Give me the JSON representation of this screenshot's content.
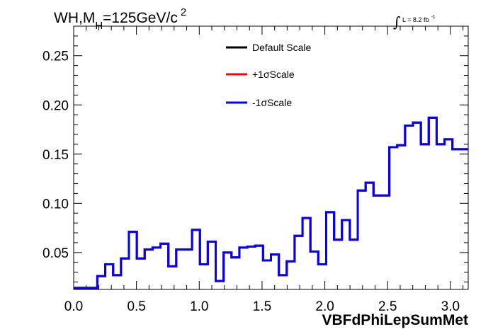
{
  "chart_data": {
    "type": "line",
    "title": {
      "main": "WH,M",
      "subscript": "H",
      "rest": "=125GeV/c",
      "superscript": "2"
    },
    "luminosity": {
      "integral_symbol": "∫",
      "text": "L = 8.2 fb",
      "superscript": "-1"
    },
    "xlabel": "VBFdPhiLepSumMet",
    "ylabel": "",
    "xlim": [
      0.0,
      3.1416
    ],
    "ylim": [
      0.0125,
      0.28
    ],
    "x_ticks": [
      0.0,
      0.5,
      1.0,
      1.5,
      2.0,
      2.5,
      3.0
    ],
    "x_tick_labels": [
      "0.0",
      "0.5",
      "1.0",
      "1.5",
      "2.0",
      "2.5",
      "3.0"
    ],
    "y_ticks": [
      0.05,
      0.1,
      0.15,
      0.2,
      0.25
    ],
    "y_tick_labels": [
      "0.05",
      "0.10",
      "0.15",
      "0.20",
      "0.25"
    ],
    "grid": false,
    "legend_position": "top-center",
    "bin_edges": [
      0.0,
      0.0628,
      0.1257,
      0.1885,
      0.2513,
      0.3142,
      0.377,
      0.4398,
      0.5027,
      0.5655,
      0.6283,
      0.6912,
      0.754,
      0.8168,
      0.8796,
      0.9425,
      1.0053,
      1.0681,
      1.131,
      1.1938,
      1.2566,
      1.3195,
      1.3823,
      1.4451,
      1.508,
      1.5708,
      1.6336,
      1.6965,
      1.7593,
      1.8221,
      1.885,
      1.9478,
      2.0106,
      2.0735,
      2.1363,
      2.1991,
      2.2619,
      2.3248,
      2.3876,
      2.4504,
      2.5133,
      2.5761,
      2.6389,
      2.7018,
      2.7646,
      2.8274,
      2.8903,
      2.9531,
      3.0159,
      3.0788,
      3.1416
    ],
    "series": [
      {
        "name": "Default Scale",
        "color": "#000000",
        "values": [
          0.014,
          0.014,
          0.014,
          0.026,
          0.038,
          0.027,
          0.044,
          0.071,
          0.044,
          0.053,
          0.055,
          0.059,
          0.036,
          0.053,
          0.053,
          0.073,
          0.038,
          0.061,
          0.021,
          0.05,
          0.045,
          0.055,
          0.056,
          0.057,
          0.042,
          0.048,
          0.027,
          0.041,
          0.067,
          0.085,
          0.051,
          0.038,
          0.091,
          0.063,
          0.083,
          0.063,
          0.113,
          0.121,
          0.108,
          0.108,
          0.157,
          0.159,
          0.179,
          0.182,
          0.16,
          0.187,
          0.16,
          0.165,
          0.155,
          0.155
        ]
      },
      {
        "name": "+1σScale",
        "color": "#ff0000",
        "values": [
          0.014,
          0.014,
          0.014,
          0.026,
          0.038,
          0.027,
          0.044,
          0.071,
          0.044,
          0.053,
          0.055,
          0.059,
          0.036,
          0.053,
          0.053,
          0.073,
          0.038,
          0.061,
          0.021,
          0.05,
          0.045,
          0.055,
          0.056,
          0.057,
          0.042,
          0.048,
          0.027,
          0.041,
          0.067,
          0.085,
          0.051,
          0.038,
          0.091,
          0.063,
          0.083,
          0.063,
          0.113,
          0.121,
          0.108,
          0.108,
          0.157,
          0.159,
          0.179,
          0.182,
          0.16,
          0.187,
          0.16,
          0.165,
          0.155,
          0.155
        ]
      },
      {
        "name": "-1σScale",
        "color": "#0000ff",
        "values": [
          0.014,
          0.014,
          0.014,
          0.026,
          0.038,
          0.027,
          0.044,
          0.071,
          0.044,
          0.053,
          0.055,
          0.059,
          0.036,
          0.053,
          0.053,
          0.073,
          0.038,
          0.061,
          0.021,
          0.05,
          0.045,
          0.055,
          0.056,
          0.057,
          0.042,
          0.048,
          0.027,
          0.041,
          0.067,
          0.085,
          0.051,
          0.038,
          0.091,
          0.063,
          0.083,
          0.063,
          0.113,
          0.121,
          0.108,
          0.108,
          0.157,
          0.159,
          0.179,
          0.182,
          0.16,
          0.187,
          0.16,
          0.165,
          0.155,
          0.155
        ]
      }
    ]
  }
}
